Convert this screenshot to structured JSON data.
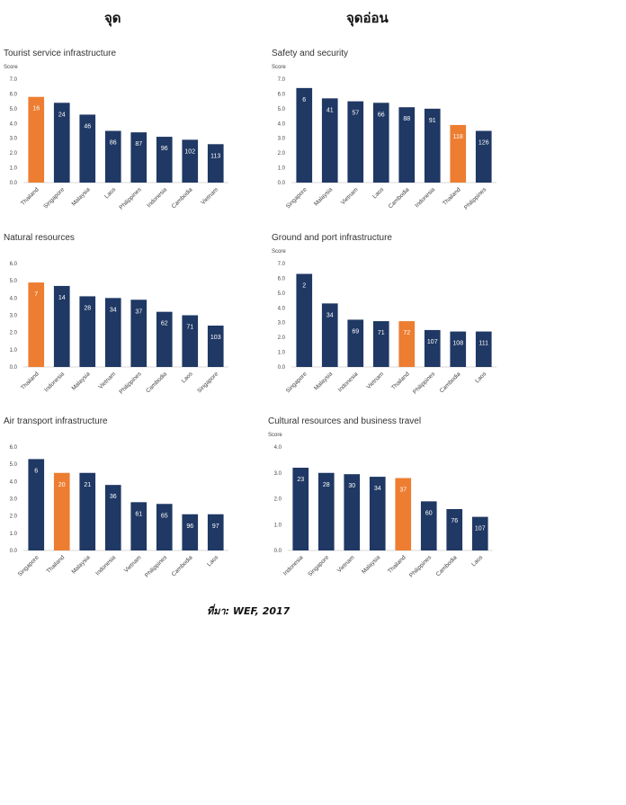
{
  "header": {
    "left": "จุด",
    "right": "จุดอ่อน"
  },
  "source": "ที่มา: WEF, 2017",
  "colors": {
    "bar": "#1f3864",
    "highlight": "#ed7d31",
    "axis": "#d9d9d9"
  },
  "chart_data": [
    {
      "type": "bar",
      "title": "Tourist service infrastructure",
      "ylabel": "Score",
      "ylim": [
        0,
        7
      ],
      "yticks": [
        "0.0",
        "1.0",
        "2.0",
        "3.0",
        "4.0",
        "5.0",
        "6.0",
        "7.0"
      ],
      "categories": [
        "Thailand",
        "Singapore",
        "Malaysia",
        "Laos",
        "Philippines",
        "Indonesia",
        "Cambodia",
        "Vietnam"
      ],
      "values": [
        5.8,
        5.4,
        4.6,
        3.5,
        3.4,
        3.1,
        2.9,
        2.6
      ],
      "labels": [
        "16",
        "24",
        "46",
        "86",
        "87",
        "96",
        "102",
        "113"
      ],
      "highlight": "Thailand"
    },
    {
      "type": "bar",
      "title": "Safety and  security",
      "ylabel": "Score",
      "ylim": [
        0,
        7
      ],
      "yticks": [
        "0.0",
        "1.0",
        "2.0",
        "3.0",
        "4.0",
        "5.0",
        "6.0",
        "7.0"
      ],
      "categories": [
        "Singapore",
        "Malaysia",
        "Vietnam",
        "Laos",
        "Cambodia",
        "Indonesia",
        "Thailand",
        "Philippines"
      ],
      "values": [
        6.4,
        5.7,
        5.5,
        5.4,
        5.1,
        5.0,
        3.9,
        3.5
      ],
      "labels": [
        "6",
        "41",
        "57",
        "66",
        "88",
        "91",
        "118",
        "126"
      ],
      "highlight": "Thailand"
    },
    {
      "type": "bar",
      "title": "Natural resources",
      "ylabel": "",
      "ylim": [
        0,
        6
      ],
      "yticks": [
        "0.0",
        "1.0",
        "2.0",
        "3.0",
        "4.0",
        "5.0",
        "6.0"
      ],
      "categories": [
        "Thailand",
        "Indonesia",
        "Malaysia",
        "Vietnam",
        "Philippines",
        "Cambodia",
        "Laos",
        "Singapore"
      ],
      "values": [
        4.9,
        4.7,
        4.1,
        4.0,
        3.9,
        3.2,
        3.0,
        2.4
      ],
      "labels": [
        "7",
        "14",
        "28",
        "34",
        "37",
        "62",
        "71",
        "103"
      ],
      "highlight": "Thailand"
    },
    {
      "type": "bar",
      "title": "Ground and port infrastructure",
      "ylabel": "Score",
      "ylim": [
        0,
        7
      ],
      "yticks": [
        "0.0",
        "1.0",
        "2.0",
        "3.0",
        "4.0",
        "5.0",
        "6.0",
        "7.0"
      ],
      "categories": [
        "Singapore",
        "Malaysia",
        "Indonesia",
        "Vietnam",
        "Thailand",
        "Philippines",
        "Cambodia",
        "Laos"
      ],
      "values": [
        6.3,
        4.3,
        3.2,
        3.1,
        3.1,
        2.5,
        2.4,
        2.4
      ],
      "labels": [
        "2",
        "34",
        "69",
        "71",
        "72",
        "107",
        "108",
        "111"
      ],
      "highlight": "Thailand"
    },
    {
      "type": "bar",
      "title": "Air transport infrastructure",
      "ylabel": "",
      "ylim": [
        0,
        6
      ],
      "yticks": [
        "0.0",
        "1.0",
        "2.0",
        "3.0",
        "4.0",
        "5.0",
        "6.0"
      ],
      "categories": [
        "Singapore",
        "Thailand",
        "Malaysia",
        "Indonesia",
        "Vietnam",
        "Philippines",
        "Cambodia",
        "Laos"
      ],
      "values": [
        5.3,
        4.5,
        4.5,
        3.8,
        2.8,
        2.7,
        2.1,
        2.1
      ],
      "labels": [
        "6",
        "20",
        "21",
        "36",
        "61",
        "65",
        "96",
        "97"
      ],
      "highlight": "Thailand"
    },
    {
      "type": "bar",
      "title": "Cultural resources and business travel",
      "ylabel": "Score",
      "ylim": [
        0,
        4
      ],
      "yticks": [
        "0.0",
        "1.0",
        "2.0",
        "3.0",
        "4.0"
      ],
      "categories": [
        "Indonesia",
        "Singapore",
        "Vietnam",
        "Malaysia",
        "Thailand",
        "Philippines",
        "Cambodia",
        "Laos"
      ],
      "values": [
        3.2,
        3.0,
        2.95,
        2.85,
        2.8,
        1.9,
        1.6,
        1.3
      ],
      "labels": [
        "23",
        "28",
        "30",
        "34",
        "37",
        "60",
        "76",
        "107"
      ],
      "highlight": "Thailand"
    }
  ]
}
